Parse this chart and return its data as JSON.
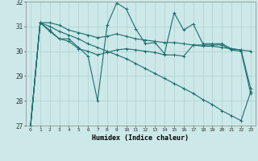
{
  "xlabel": "Humidex (Indice chaleur)",
  "background_color": "#cde8e8",
  "grid_color": "#b0d0d0",
  "line_color": "#1a6e6e",
  "xlim": [
    -0.5,
    23.5
  ],
  "ylim": [
    27,
    32
  ],
  "yticks": [
    27,
    28,
    29,
    30,
    31,
    32
  ],
  "xticks": [
    0,
    1,
    2,
    3,
    4,
    5,
    6,
    7,
    8,
    9,
    10,
    11,
    12,
    13,
    14,
    15,
    16,
    17,
    18,
    19,
    20,
    21,
    22,
    23
  ],
  "series": [
    [
      27.0,
      31.15,
      30.85,
      30.5,
      30.5,
      30.15,
      29.8,
      28.0,
      31.05,
      31.95,
      31.7,
      30.9,
      30.3,
      30.35,
      29.9,
      31.55,
      30.85,
      31.1,
      30.3,
      30.3,
      30.3,
      30.1,
      30.05,
      28.5
    ],
    [
      27.0,
      31.15,
      31.15,
      31.05,
      30.85,
      30.75,
      30.65,
      30.55,
      30.6,
      30.7,
      30.6,
      30.5,
      30.45,
      30.4,
      30.35,
      30.35,
      30.3,
      30.25,
      30.2,
      30.2,
      30.15,
      30.1,
      30.05,
      30.0
    ],
    [
      27.0,
      31.15,
      30.8,
      30.5,
      30.4,
      30.1,
      30.0,
      29.85,
      29.95,
      30.05,
      30.1,
      30.05,
      30.0,
      29.95,
      29.85,
      29.85,
      29.8,
      30.25,
      30.25,
      30.25,
      30.25,
      30.05,
      30.0,
      28.3
    ],
    [
      27.0,
      31.15,
      31.0,
      30.8,
      30.65,
      30.5,
      30.3,
      30.15,
      30.0,
      29.85,
      29.7,
      29.5,
      29.3,
      29.1,
      28.9,
      28.7,
      28.5,
      28.3,
      28.05,
      27.85,
      27.6,
      27.4,
      27.2,
      28.35
    ]
  ]
}
